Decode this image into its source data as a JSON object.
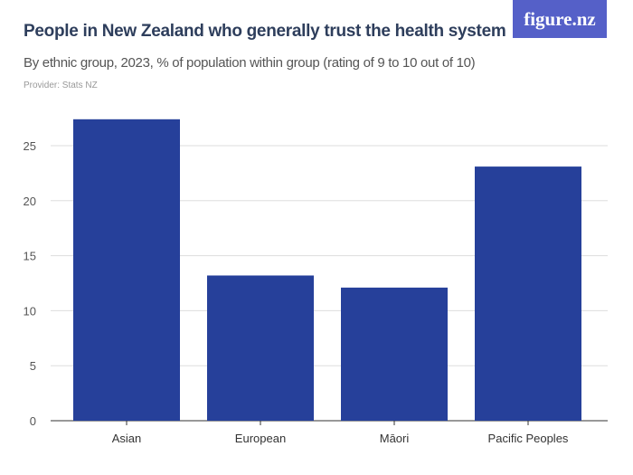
{
  "logo": "figure.nz",
  "chart_data": {
    "type": "bar",
    "title": "People in New Zealand who generally trust the health system",
    "subtitle": "By ethnic group, 2023, % of population within group (rating of 9 to 10 out of 10)",
    "provider": "Provider: Stats NZ",
    "categories": [
      "Asian",
      "European",
      "Māori",
      "Pacific Peoples"
    ],
    "values": [
      27.4,
      13.2,
      12.1,
      23.1
    ],
    "ylim": [
      0,
      27.5
    ],
    "yticks": [
      0,
      5,
      10,
      15,
      20,
      25
    ],
    "grid": true,
    "bar_color": "#26409a",
    "xlabel": "",
    "ylabel": ""
  }
}
